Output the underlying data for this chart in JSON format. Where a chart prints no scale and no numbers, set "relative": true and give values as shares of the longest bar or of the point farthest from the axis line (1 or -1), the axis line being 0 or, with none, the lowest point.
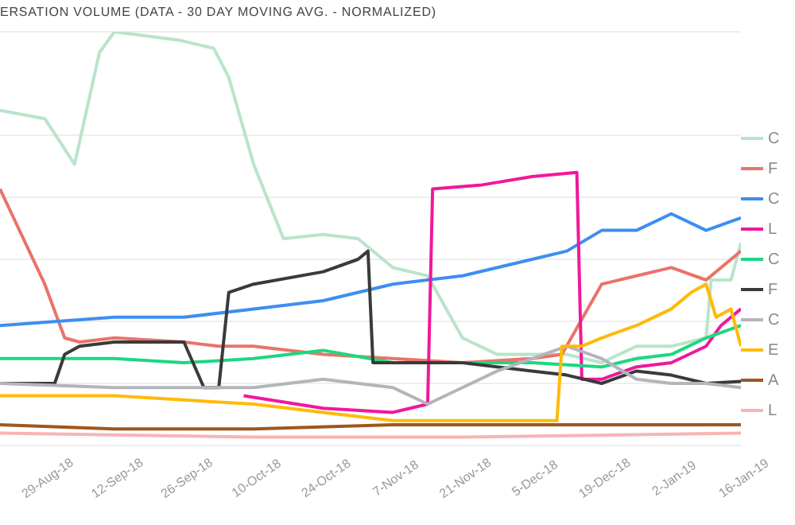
{
  "chart_data": {
    "type": "line",
    "title": "ERSATION VOLUME (DATA - 30 DAY MOVING AVG. - NORMALIZED)",
    "relative": true,
    "grid": "y",
    "legend": "right",
    "marker": "none",
    "line_style": "solid",
    "tick_labels": "x",
    "xlim": [
      "2018-08-20",
      "2019-01-16"
    ],
    "xticks": [
      {
        "value": "2018-08-29",
        "label": "29-Aug-18"
      },
      {
        "value": "2018-09-12",
        "label": "12-Sep-18"
      },
      {
        "value": "2018-09-26",
        "label": "26-Sep-18"
      },
      {
        "value": "2018-10-10",
        "label": "10-Oct-18"
      },
      {
        "value": "2018-10-24",
        "label": "24-Oct-18"
      },
      {
        "value": "2018-11-07",
        "label": "7-Nov-18"
      },
      {
        "value": "2018-11-21",
        "label": "21-Nov-18"
      },
      {
        "value": "2018-12-05",
        "label": "5-Dec-18"
      },
      {
        "value": "2018-12-19",
        "label": "19-Dec-18"
      },
      {
        "value": "2019-01-02",
        "label": "2-Jan-19"
      },
      {
        "value": "2019-01-16",
        "label": "16-Jan-19"
      }
    ],
    "series": [
      {
        "name": "C",
        "color": "#b9e4c9",
        "x": [
          "2018-08-20",
          "2018-08-29",
          "2018-09-04",
          "2018-09-09",
          "2018-09-12",
          "2018-09-25",
          "2018-10-02",
          "2018-10-05",
          "2018-10-10",
          "2018-10-16",
          "2018-10-24",
          "2018-10-31",
          "2018-11-07",
          "2018-11-14",
          "2018-11-21",
          "2018-11-28",
          "2018-12-12",
          "2018-12-19",
          "2018-12-26",
          "2019-01-02",
          "2019-01-09",
          "2019-01-10",
          "2019-01-14",
          "2019-01-16"
        ],
        "values": [
          0.81,
          0.79,
          0.68,
          0.95,
          1,
          0.98,
          0.96,
          0.89,
          0.68,
          0.5,
          0.51,
          0.5,
          0.43,
          0.41,
          0.26,
          0.22,
          0.22,
          0.2,
          0.24,
          0.24,
          0.26,
          0.4,
          0.4,
          0.49
        ]
      },
      {
        "name": "F",
        "color": "#e8746a",
        "x": [
          "2018-08-20",
          "2018-08-29",
          "2018-09-02",
          "2018-09-05",
          "2018-09-12",
          "2018-09-26",
          "2018-10-03",
          "2018-10-10",
          "2018-10-24",
          "2018-11-07",
          "2018-11-21",
          "2018-12-05",
          "2018-12-11",
          "2018-12-19",
          "2018-12-26",
          "2019-01-02",
          "2019-01-09",
          "2019-01-16"
        ],
        "values": [
          0.62,
          0.39,
          0.26,
          0.25,
          0.26,
          0.25,
          0.24,
          0.24,
          0.22,
          0.21,
          0.2,
          0.21,
          0.22,
          0.39,
          0.41,
          0.43,
          0.4,
          0.47
        ]
      },
      {
        "name": "C",
        "color": "#3d8ef0",
        "x": [
          "2018-08-20",
          "2018-09-12",
          "2018-09-26",
          "2018-10-10",
          "2018-10-24",
          "2018-11-07",
          "2018-11-21",
          "2018-12-05",
          "2018-12-12",
          "2018-12-19",
          "2018-12-26",
          "2019-01-02",
          "2019-01-09",
          "2019-01-16"
        ],
        "values": [
          0.29,
          0.31,
          0.31,
          0.33,
          0.35,
          0.39,
          0.41,
          0.45,
          0.47,
          0.52,
          0.52,
          0.56,
          0.52,
          0.55
        ]
      },
      {
        "name": "L",
        "color": "#f0189c",
        "x": [
          "2018-10-08",
          "2018-10-24",
          "2018-11-07",
          "2018-11-14",
          "2018-11-15",
          "2018-11-25",
          "2018-12-05",
          "2018-12-14",
          "2018-12-15",
          "2018-12-19",
          "2018-12-26",
          "2019-01-02",
          "2019-01-09",
          "2019-01-12",
          "2019-01-16"
        ],
        "values": [
          0.12,
          0.09,
          0.08,
          0.1,
          0.62,
          0.63,
          0.65,
          0.66,
          0.16,
          0.16,
          0.19,
          0.2,
          0.24,
          0.29,
          0.33
        ]
      },
      {
        "name": "C",
        "color": "#1fd67f",
        "x": [
          "2018-08-20",
          "2018-09-12",
          "2018-09-26",
          "2018-10-10",
          "2018-10-24",
          "2018-11-07",
          "2018-11-21",
          "2018-12-05",
          "2018-12-19",
          "2018-12-26",
          "2019-01-02",
          "2019-01-09",
          "2019-01-16"
        ],
        "values": [
          0.21,
          0.21,
          0.2,
          0.21,
          0.23,
          0.2,
          0.2,
          0.2,
          0.19,
          0.21,
          0.22,
          0.26,
          0.29
        ]
      },
      {
        "name": "F",
        "color": "#3a3a3a",
        "x": [
          "2018-08-20",
          "2018-08-31",
          "2018-09-02",
          "2018-09-05",
          "2018-09-12",
          "2018-09-26",
          "2018-09-30",
          "2018-10-03",
          "2018-10-05",
          "2018-10-10",
          "2018-10-24",
          "2018-10-31",
          "2018-11-02",
          "2018-11-03",
          "2018-11-07",
          "2018-11-21",
          "2018-12-05",
          "2018-12-12",
          "2018-12-19",
          "2018-12-26",
          "2019-01-02",
          "2019-01-09",
          "2019-01-16"
        ],
        "values": [
          0.15,
          0.15,
          0.22,
          0.24,
          0.25,
          0.25,
          0.14,
          0.14,
          0.37,
          0.39,
          0.42,
          0.45,
          0.47,
          0.2,
          0.2,
          0.2,
          0.18,
          0.17,
          0.15,
          0.18,
          0.17,
          0.15,
          0.155
        ]
      },
      {
        "name": "C",
        "color": "#b4b4bc",
        "x": [
          "2018-08-20",
          "2018-09-12",
          "2018-10-10",
          "2018-10-24",
          "2018-11-07",
          "2018-11-14",
          "2018-11-21",
          "2018-11-28",
          "2018-12-05",
          "2018-12-12",
          "2018-12-19",
          "2018-12-26",
          "2019-01-02",
          "2019-01-09",
          "2019-01-16"
        ],
        "values": [
          0.15,
          0.14,
          0.14,
          0.16,
          0.14,
          0.1,
          0.14,
          0.18,
          0.21,
          0.24,
          0.21,
          0.16,
          0.15,
          0.15,
          0.14
        ]
      },
      {
        "name": "E",
        "color": "#ffba08",
        "x": [
          "2018-08-20",
          "2018-09-12",
          "2018-09-26",
          "2018-10-10",
          "2018-10-24",
          "2018-11-07",
          "2018-12-10",
          "2018-12-11",
          "2018-12-15",
          "2018-12-19",
          "2018-12-26",
          "2019-01-02",
          "2019-01-06",
          "2019-01-09",
          "2019-01-11",
          "2019-01-14",
          "2019-01-16"
        ],
        "values": [
          0.12,
          0.12,
          0.11,
          0.1,
          0.08,
          0.06,
          0.06,
          0.24,
          0.24,
          0.26,
          0.29,
          0.33,
          0.37,
          0.39,
          0.31,
          0.33,
          0.24
        ]
      },
      {
        "name": "A",
        "color": "#a0561c",
        "x": [
          "2018-08-20",
          "2018-09-12",
          "2018-10-10",
          "2018-11-07",
          "2018-12-05",
          "2019-01-16"
        ],
        "values": [
          0.05,
          0.04,
          0.04,
          0.05,
          0.05,
          0.05
        ]
      },
      {
        "name": "L",
        "color": "#f8b4b4",
        "x": [
          "2018-08-20",
          "2018-10-10",
          "2018-11-21",
          "2019-01-16"
        ],
        "values": [
          0.03,
          0.02,
          0.02,
          0.03
        ]
      }
    ]
  }
}
